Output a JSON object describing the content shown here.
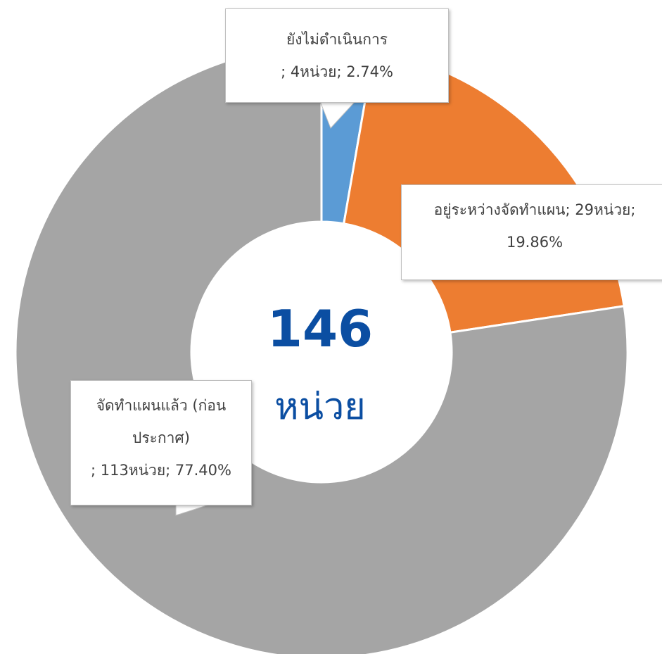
{
  "chart_data": {
    "type": "donut",
    "categories": [
      "ยังไม่ดำเนินการ",
      "อยู่ระหว่างจัดทำแผน",
      "จัดทำแผนแล้ว (ก่อนประกาศ)"
    ],
    "values": [
      4,
      29,
      113
    ],
    "value_labels": [
      "; 4หน่วย; 2.74%",
      "; 29หน่วย; 19.86%",
      "; 113หน่วย; 77.40%"
    ],
    "colors": [
      "#5b9bd5",
      "#ed7d31",
      "#a5a5a5"
    ],
    "total": 146,
    "total_label": "หน่วย"
  }
}
